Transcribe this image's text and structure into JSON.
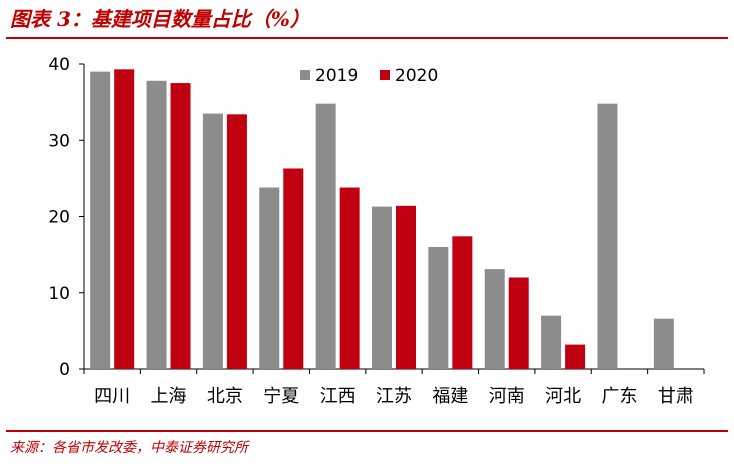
{
  "header": {
    "title": "图表 3：基建项目数量占比（%）"
  },
  "footer": {
    "source": "来源：各省市发改委，中泰证券研究所"
  },
  "colors": {
    "accent": "#c00000",
    "series_2019": "#8c8c8c",
    "series_2020": "#c00010"
  },
  "chart_data": {
    "type": "bar",
    "categories": [
      "四川",
      "上海",
      "北京",
      "宁夏",
      "江西",
      "江苏",
      "福建",
      "河南",
      "河北",
      "广东",
      "甘肃"
    ],
    "series": [
      {
        "name": "2019",
        "values": [
          39.0,
          37.8,
          33.5,
          23.8,
          34.8,
          21.3,
          16.0,
          13.1,
          7.0,
          34.8,
          6.6
        ]
      },
      {
        "name": "2020",
        "values": [
          39.3,
          37.5,
          33.4,
          26.3,
          23.8,
          21.4,
          17.4,
          12.0,
          3.2,
          null,
          null
        ]
      }
    ],
    "ylim": [
      0,
      40
    ],
    "yticks": [
      0,
      10,
      20,
      30,
      40
    ],
    "grid": false,
    "legend": "top-right",
    "title": "",
    "xlabel": "",
    "ylabel": ""
  }
}
